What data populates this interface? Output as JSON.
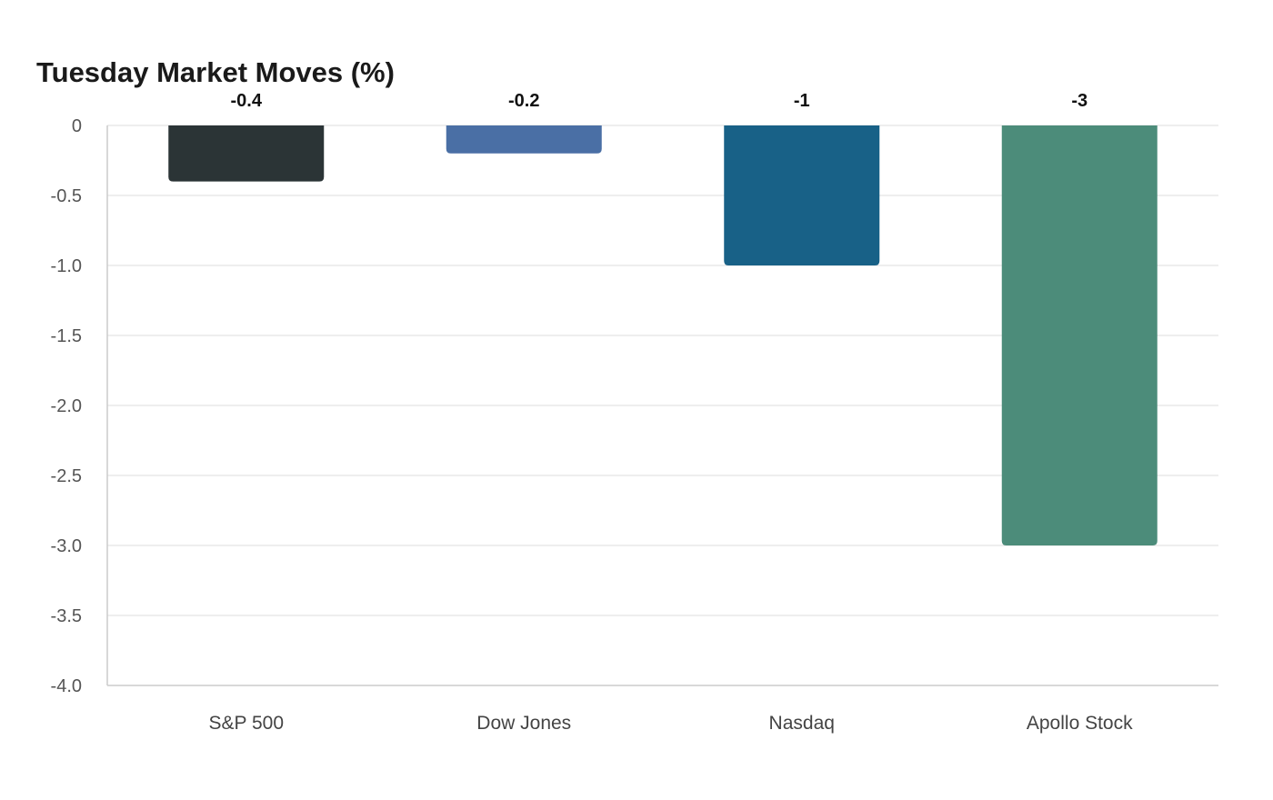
{
  "chart_data": {
    "type": "bar",
    "title": "Tuesday Market Moves (%)",
    "categories": [
      "S&P 500",
      "Dow Jones",
      "Nasdaq",
      "Apollo Stock"
    ],
    "values": [
      -0.4,
      -0.2,
      -1,
      -3
    ],
    "value_labels": [
      "-0.4",
      "-0.2",
      "-1",
      "-3"
    ],
    "colors": [
      "#2b3436",
      "#4a6fa5",
      "#186187",
      "#4c8c7a"
    ],
    "ylim": [
      -4.0,
      0
    ],
    "yticks": [
      0,
      -0.5,
      -1.0,
      -1.5,
      -2.0,
      -2.5,
      -3.0,
      -3.5,
      -4.0
    ],
    "ytick_labels": [
      "0",
      "-0.5",
      "-1.0",
      "-1.5",
      "-2.0",
      "-2.5",
      "-3.0",
      "-3.5",
      "-4.0"
    ],
    "xlabel": "",
    "ylabel": "",
    "grid": true,
    "legend": "none"
  }
}
